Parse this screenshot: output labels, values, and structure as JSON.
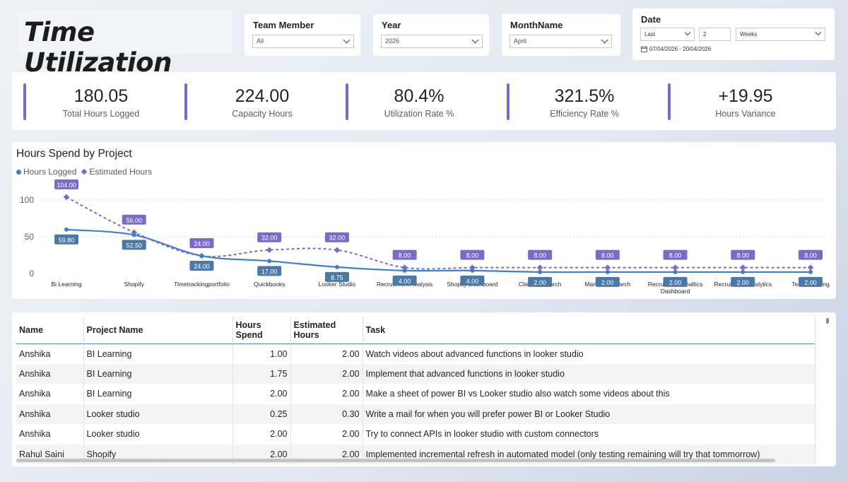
{
  "header": {
    "title": "Time Utilization"
  },
  "slicers": {
    "team_member": {
      "label": "Team Member",
      "value": "All"
    },
    "year": {
      "label": "Year",
      "value": "2026"
    },
    "month": {
      "label": "MonthName",
      "value": "April"
    },
    "date": {
      "label": "Date",
      "relative": "Last",
      "count": "2",
      "unit": "Weeks",
      "range": "07/04/2026 - 20/04/2026"
    }
  },
  "kpis": [
    {
      "value": "180.05",
      "label": "Total Hours Logged"
    },
    {
      "value": "224.00",
      "label": "Capacity Hours"
    },
    {
      "value": "80.4%",
      "label": "Utilization Rate %"
    },
    {
      "value": "321.5%",
      "label": "Efficiency Rate %"
    },
    {
      "value": "+19.95",
      "label": "Hours Variance"
    }
  ],
  "chart": {
    "title": "Hours Spend by Project",
    "legend": {
      "hours_logged": "Hours Logged",
      "estimated_hours": "Estimated Hours"
    }
  },
  "chart_data": {
    "type": "line",
    "title": "Hours Spend by Project",
    "categories": [
      "Bi Learning",
      "Shopify",
      "Timetrackingportfolio",
      "Quickbooks",
      "Looker Studio",
      "Recruitment Analysis",
      "Shopify Dashboard",
      "Client Research",
      "Market Research",
      "Recruitment Analtics Dashboard",
      "Recruitment Analytics",
      "Team Meeting"
    ],
    "series": [
      {
        "name": "Hours Logged",
        "values": [
          59.8,
          52.5,
          24.0,
          17.0,
          8.75,
          4.0,
          4.0,
          2.0,
          2.0,
          2.0,
          2.0,
          2.0
        ],
        "labels": [
          "59.80",
          "52.50",
          "24.00",
          "17.00",
          "8.75",
          "4.00",
          "4.00",
          "2.00",
          "2.00",
          "2.00",
          "2.00",
          "2.00"
        ],
        "color": "#3d7fca"
      },
      {
        "name": "Estimated Hours",
        "values": [
          104.0,
          56.0,
          24.0,
          32.0,
          32.0,
          8.0,
          8.0,
          8.0,
          8.0,
          8.0,
          8.0,
          8.0
        ],
        "labels": [
          "104.00",
          "56.00",
          "24.00",
          "32.00",
          "32.00",
          "8.00",
          "8.00",
          "8.00",
          "8.00",
          "8.00",
          "8.00",
          "8.00"
        ],
        "color": "#7b6bc9"
      }
    ],
    "y_ticks": [
      "100",
      "50",
      "0"
    ],
    "ylim": [
      0,
      100
    ],
    "grid": true,
    "legend_position": "top-left"
  },
  "table": {
    "columns": [
      "Name",
      "Project Name",
      "Hours Spend",
      "Estimated Hours",
      "Task"
    ],
    "rows": [
      [
        "Anshika",
        "BI Learning",
        "1.00",
        "2.00",
        "Watch videos about advanced functions in looker studio"
      ],
      [
        "Anshika",
        "BI Learning",
        "1.75",
        "2.00",
        "Implement that advanced functions in looker studio"
      ],
      [
        "Anshika",
        "BI Learning",
        "2.00",
        "2.00",
        "Make a sheet of power BI vs Looker studio also watch some videos about this"
      ],
      [
        "Anshika",
        "Looker studio",
        "0.25",
        "0.30",
        "Write a mail for when you will prefer power BI or Looker Studio"
      ],
      [
        "Anshika",
        "Looker studio",
        "2.00",
        "2.00",
        "Try to connect APIs in looker studio with custom connectors"
      ],
      [
        "Rahul Saini",
        "Shopify",
        "2.00",
        "2.00",
        "Implemented incremental refresh in automated model (only testing remaining will try that tommorrow)"
      ]
    ]
  }
}
